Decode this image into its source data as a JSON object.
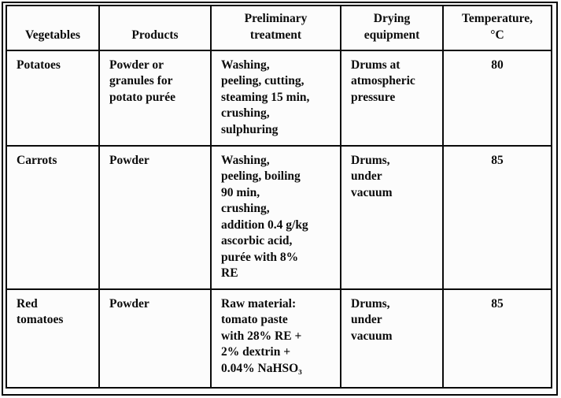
{
  "table": {
    "columns": [
      {
        "label": "Vegetables"
      },
      {
        "label": "Products"
      },
      {
        "label": "Preliminary\ntreatment"
      },
      {
        "label": "Drying\nequipment"
      },
      {
        "label": "Temperature,\n°C"
      }
    ],
    "rows": [
      {
        "vegetable": "Potatoes",
        "product": "Powder or\ngranules for\npotato purée",
        "treatment": "Washing,\npeeling, cutting,\nsteaming 15 min,\ncrushing,\nsulphuring",
        "equipment": "Drums at\natmospheric\npressure",
        "temperature": "80"
      },
      {
        "vegetable": "Carrots",
        "product": "Powder",
        "treatment": "Washing,\npeeling, boiling\n90 min,\ncrushing,\naddition 0.4 g/kg\nascorbic acid,\npurée with 8%\nRE",
        "equipment": "Drums,\nunder\nvacuum",
        "temperature": "85"
      },
      {
        "vegetable": "Red\ntomatoes",
        "product": "Powder",
        "treatment": "Raw material:\ntomato paste\nwith 28% RE +\n2% dextrin +\n0.04% NaHSO₃",
        "equipment": "Drums,\nunder\nvacuum",
        "temperature": "85"
      }
    ]
  },
  "colors": {
    "border": "#0a0a0a",
    "text": "#0b0b0b",
    "background": "#fcfcfc"
  }
}
